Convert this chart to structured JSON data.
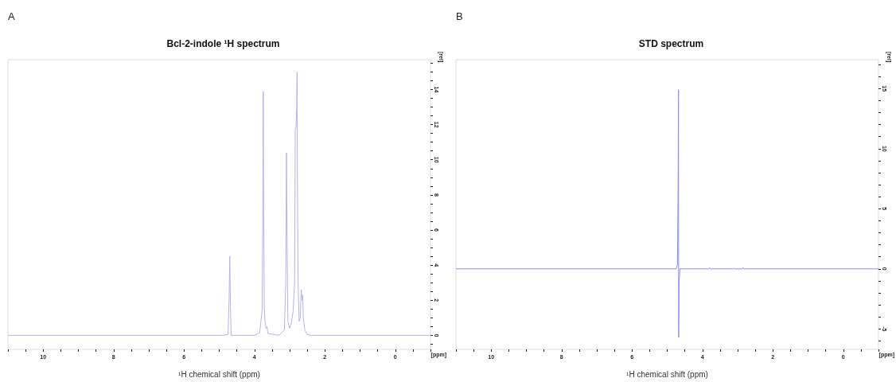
{
  "chart_data": [
    {
      "type": "line",
      "title": "Bcl-2-indole ¹H spectrum",
      "xlabel": "¹H chemical shift (ppm)",
      "annotations": [
        "A",
        "[ppm]",
        "[rel]"
      ],
      "grid": false,
      "xlim": [
        11,
        -1
      ],
      "xticks": [
        {
          "value": 11,
          "label": null
        },
        {
          "value": 10.5,
          "label": null
        },
        10,
        {
          "value": 9.5,
          "label": null
        },
        {
          "value": 9,
          "label": null
        },
        {
          "value": 8.5,
          "label": null
        },
        8,
        {
          "value": 7.5,
          "label": null
        },
        {
          "value": 7,
          "label": null
        },
        {
          "value": 6.5,
          "label": null
        },
        6,
        {
          "value": 5.5,
          "label": null
        },
        {
          "value": 5,
          "label": null
        },
        {
          "value": 4.5,
          "label": null
        },
        4,
        {
          "value": 3.5,
          "label": null
        },
        {
          "value": 3,
          "label": null
        },
        {
          "value": 2.5,
          "label": null
        },
        2,
        {
          "value": 1.5,
          "label": null
        },
        {
          "value": 1,
          "label": null
        },
        {
          "value": 0.5,
          "label": null
        },
        0,
        {
          "value": -0.5,
          "label": null
        },
        {
          "value": -1,
          "label": null
        }
      ],
      "ylim": [
        -0.8,
        15.7
      ],
      "yticks": [
        {
          "value": -0.5,
          "label": null
        },
        0,
        {
          "value": 0.5,
          "label": null
        },
        {
          "value": 1,
          "label": null
        },
        {
          "value": 1.5,
          "label": null
        },
        2,
        {
          "value": 2.5,
          "label": null
        },
        {
          "value": 3,
          "label": null
        },
        {
          "value": 3.5,
          "label": null
        },
        4,
        {
          "value": 4.5,
          "label": null
        },
        {
          "value": 5,
          "label": null
        },
        {
          "value": 5.5,
          "label": null
        },
        6,
        {
          "value": 6.5,
          "label": null
        },
        {
          "value": 7,
          "label": null
        },
        {
          "value": 7.5,
          "label": null
        },
        8,
        {
          "value": 8.5,
          "label": null
        },
        {
          "value": 9,
          "label": null
        },
        {
          "value": 9.5,
          "label": null
        },
        10,
        {
          "value": 10.5,
          "label": null
        },
        {
          "value": 11,
          "label": null
        },
        {
          "value": 11.5,
          "label": null
        },
        12,
        {
          "value": 12.5,
          "label": null
        },
        {
          "value": 13,
          "label": null
        },
        {
          "value": 13.5,
          "label": null
        },
        14,
        {
          "value": 14.5,
          "label": null
        },
        {
          "value": 15,
          "label": null
        },
        {
          "value": 15.5,
          "label": null
        }
      ],
      "series": [
        {
          "color": "#b4b4f2",
          "x": [
            11,
            4.9,
            4.75,
            4.72,
            4.7,
            4.68,
            4.66,
            4.0,
            3.85,
            3.78,
            3.76,
            3.75,
            3.74,
            3.72,
            3.7,
            3.67,
            3.64,
            3.62,
            3.3,
            3.15,
            3.11,
            3.09,
            3.07,
            3.05,
            3.0,
            2.95,
            2.9,
            2.86,
            2.84,
            2.82,
            2.8,
            2.79,
            2.78,
            2.76,
            2.73,
            2.7,
            2.67,
            2.65,
            2.63,
            2.61,
            2.57,
            2.5,
            2.4,
            -1
          ],
          "values": [
            0,
            0,
            0.05,
            2,
            4.5,
            1.5,
            0,
            0,
            0.15,
            1.5,
            8,
            13.9,
            8,
            1.5,
            0.8,
            0.4,
            0.5,
            0.1,
            0,
            0.3,
            3,
            10.4,
            5,
            0.8,
            0.4,
            0.7,
            1.4,
            3,
            11.8,
            11.8,
            13,
            15,
            9,
            3,
            0.8,
            1,
            2.6,
            2,
            2.3,
            1,
            0.3,
            0.05,
            0,
            0
          ]
        }
      ]
    },
    {
      "type": "line",
      "title": "STD spectrum",
      "xlabel": "¹H chemical shift (ppm)",
      "annotations": [
        "B",
        "[ppm]",
        "[rel]"
      ],
      "grid": false,
      "xlim": [
        11,
        -1
      ],
      "xticks": [
        {
          "value": 11,
          "label": null
        },
        {
          "value": 10.5,
          "label": null
        },
        10,
        {
          "value": 9.5,
          "label": null
        },
        {
          "value": 9,
          "label": null
        },
        {
          "value": 8.5,
          "label": null
        },
        8,
        {
          "value": 7.5,
          "label": null
        },
        {
          "value": 7,
          "label": null
        },
        {
          "value": 6.5,
          "label": null
        },
        6,
        {
          "value": 5.5,
          "label": null
        },
        {
          "value": 5,
          "label": null
        },
        {
          "value": 4.5,
          "label": null
        },
        4,
        {
          "value": 3.5,
          "label": null
        },
        {
          "value": 3,
          "label": null
        },
        {
          "value": 2.5,
          "label": null
        },
        2,
        {
          "value": 1.5,
          "label": null
        },
        {
          "value": 1,
          "label": null
        },
        {
          "value": 0.5,
          "label": null
        },
        0,
        {
          "value": -0.5,
          "label": null
        },
        {
          "value": -1,
          "label": null
        }
      ],
      "ylim": [
        -6.7,
        17.4
      ],
      "yticks": [
        {
          "value": -6,
          "label": null
        },
        -5,
        {
          "value": -4,
          "label": null
        },
        {
          "value": -3,
          "label": null
        },
        {
          "value": -2,
          "label": null
        },
        {
          "value": -1,
          "label": null
        },
        0,
        {
          "value": 1,
          "label": null
        },
        {
          "value": 2,
          "label": null
        },
        {
          "value": 3,
          "label": null
        },
        {
          "value": 4,
          "label": null
        },
        5,
        {
          "value": 6,
          "label": null
        },
        {
          "value": 7,
          "label": null
        },
        {
          "value": 8,
          "label": null
        },
        {
          "value": 9,
          "label": null
        },
        10,
        {
          "value": 11,
          "label": null
        },
        {
          "value": 12,
          "label": null
        },
        {
          "value": 13,
          "label": null
        },
        {
          "value": 14,
          "label": null
        },
        15,
        {
          "value": 16,
          "label": null
        },
        {
          "value": 17,
          "label": null
        }
      ],
      "series": [
        {
          "color": "#8c8cf0",
          "x": [
            11,
            4.75,
            4.71,
            4.69,
            4.68,
            4.675,
            4.66,
            4.64,
            3.82,
            3.8,
            3.78,
            3.12,
            3.1,
            3.08,
            2.87,
            2.85,
            2.83,
            -1
          ],
          "values": [
            0,
            0,
            0.3,
            7,
            14.9,
            -5.7,
            -1,
            0,
            0,
            0.1,
            0,
            0,
            0.05,
            0,
            0,
            0.1,
            0,
            0
          ]
        }
      ]
    }
  ]
}
